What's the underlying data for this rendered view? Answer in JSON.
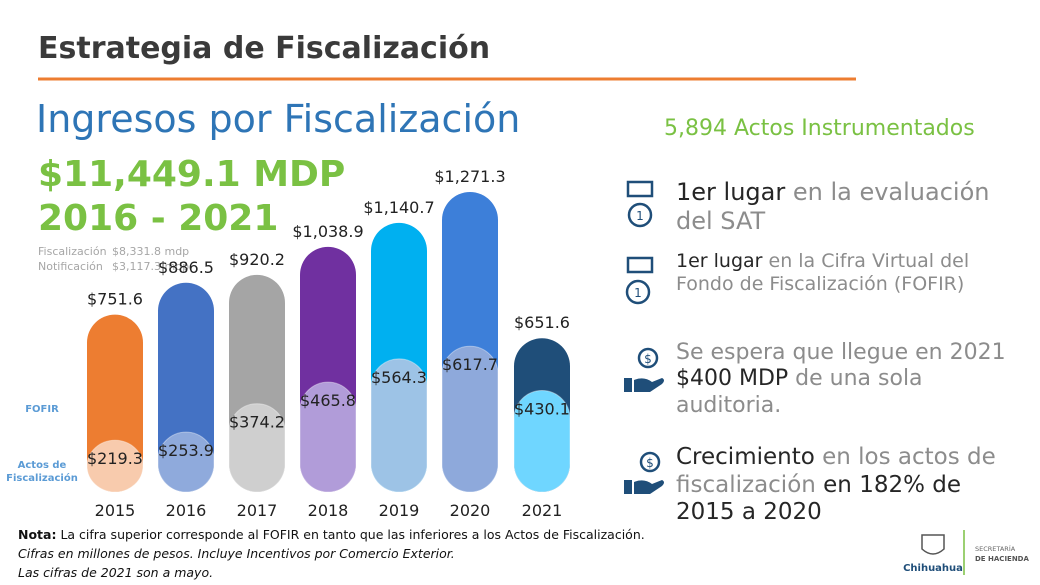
{
  "header": {
    "title": "Estrategia de Fiscalización"
  },
  "subtitle": "Ingresos por Fiscalización",
  "total": "$11,449.1 MDP",
  "period": "2016 - 2021",
  "breakdown": [
    [
      "Fiscalización",
      "$8,331.8 mdp"
    ],
    [
      "Notificación",
      "$3,117.3 mdp"
    ]
  ],
  "chart_data": {
    "type": "bar",
    "categories": [
      "2015",
      "2016",
      "2017",
      "2018",
      "2019",
      "2020",
      "2021"
    ],
    "series": [
      {
        "name": "FOFIR",
        "color": "#5b9bd5",
        "colors": [
          "#ed7d31",
          "#4472c4",
          "#a5a5a5",
          "#7030a0",
          "#00b0f0",
          "#3d7fd9",
          "#1f4e79"
        ],
        "values": [
          751.6,
          886.5,
          920.2,
          1038.9,
          1140.7,
          1271.3,
          651.6
        ],
        "value_labels": [
          "$751.6",
          "$886.5",
          "$920.2",
          "$1,038.9",
          "$1,140.7",
          "$1,271.3",
          "$651.6"
        ]
      },
      {
        "name": "Actos de Fiscalización",
        "color": "#5b9bd5",
        "colors": [
          "#f8cbad",
          "#8faadc",
          "#cfcfcf",
          "#b19cd9",
          "#9dc3e6",
          "#8ea9db",
          "#6fd6ff"
        ],
        "values": [
          219.3,
          253.9,
          374.2,
          465.8,
          564.3,
          617.7,
          430.1
        ],
        "value_labels": [
          "$219.3",
          "$253.9",
          "$374.2",
          "$465.8",
          "$564.3",
          "$617.7",
          "$430.1"
        ]
      }
    ]
  },
  "actos": "5,894 Actos Instrumentados",
  "highlights": [
    [
      {
        "text": "1er lugar",
        "style": "strong"
      },
      {
        "text": " en la evaluación del SAT",
        "style": "soft"
      }
    ],
    [
      {
        "text": "1er lugar",
        "style": "strong"
      },
      {
        "text": " en la Cifra Virtual del Fondo de Fiscalización (FOFIR)",
        "style": "soft"
      }
    ],
    [
      {
        "text": "Se espera que llegue en 2021 ",
        "style": "soft"
      },
      {
        "text": "$400 MDP",
        "style": "strong"
      },
      {
        "text": " de una sola auditoria.",
        "style": "soft"
      }
    ],
    [
      {
        "text": "Crecimiento",
        "style": "strong"
      },
      {
        "text": " en los actos de fiscalización",
        "style": "soft"
      },
      {
        "text": " en 182% de 2015 a 2020",
        "style": "strong"
      }
    ]
  ],
  "note": [
    [
      {
        "text": "Nota:",
        "style": "bold"
      },
      {
        "text": " La cifra superior corresponde al FOFIR en tanto que las inferiores a los Actos de Fiscalización.",
        "style": "normal"
      }
    ],
    [
      {
        "text": "Cifras en millones de pesos. Incluye Incentivos por Comercio Exterior.",
        "style": "italic"
      }
    ],
    [
      {
        "text": "Las cifras de 2021 son a mayo.",
        "style": "italic"
      }
    ]
  ],
  "logo": {
    "name": "Chihuahua",
    "dept": [
      "SECRETARÍA",
      "DE HACIENDA"
    ]
  }
}
